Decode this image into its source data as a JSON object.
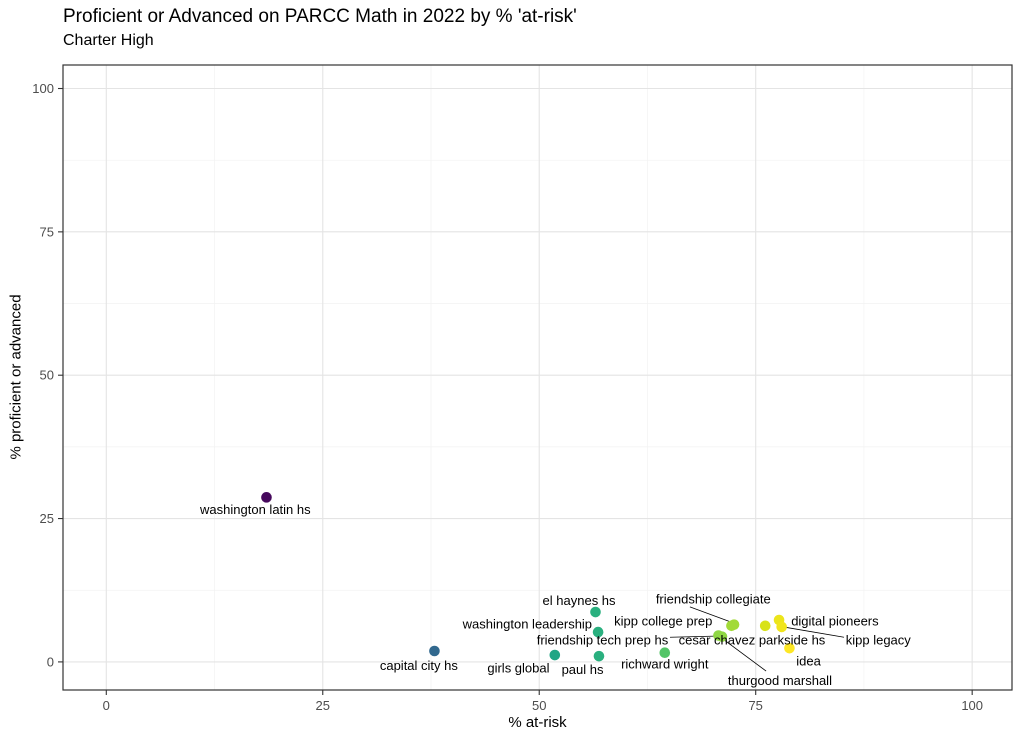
{
  "header": {
    "title": "Proficient or Advanced on PARCC Math in 2022 by % 'at-risk'",
    "subtitle": "Charter High"
  },
  "chart_data": {
    "type": "scatter",
    "title": "Proficient or Advanced on PARCC Math in 2022 by % 'at-risk'",
    "subtitle": "Charter High",
    "xlabel": "% at-risk",
    "ylabel": "% proficient or advanced",
    "x_ticks": [
      0,
      25,
      50,
      75,
      100
    ],
    "y_ticks": [
      0,
      25,
      50,
      75,
      100
    ],
    "xlim": [
      -5,
      104.6
    ],
    "ylim": [
      -4.9,
      104.1
    ],
    "grid": true,
    "legend": "none",
    "color_encoding": "viridis gradient mapped to % at-risk (x value)",
    "points": [
      {
        "name": "washington latin hs",
        "x": 18.5,
        "y": 28.7,
        "color": "#46085c",
        "label": {
          "x": 23.6,
          "y": 26.6,
          "anchor": "end"
        }
      },
      {
        "name": "capital city hs",
        "x": 37.9,
        "y": 1.9,
        "color": "#31688e",
        "label": {
          "x": 36.1,
          "y": -0.6,
          "anchor": "middle"
        }
      },
      {
        "name": "girls global",
        "x": 51.8,
        "y": 1.2,
        "color": "#21a685",
        "label": {
          "x": 47.6,
          "y": -1.1,
          "anchor": "middle"
        }
      },
      {
        "name": "el haynes hs",
        "x": 56.5,
        "y": 8.7,
        "color": "#2ab07f",
        "label": {
          "x": 54.6,
          "y": 10.7,
          "anchor": "middle"
        }
      },
      {
        "name": "washington leadership",
        "x": 56.8,
        "y": 5.2,
        "color": "#2ab07f",
        "label": {
          "x": 56.1,
          "y": 6.6,
          "anchor": "end"
        }
      },
      {
        "name": "paul hs",
        "x": 56.9,
        "y": 1.0,
        "color": "#2ab07f",
        "label": {
          "x": 55.0,
          "y": -1.3,
          "anchor": "middle"
        }
      },
      {
        "name": "richward wright",
        "x": 64.5,
        "y": 1.6,
        "color": "#54c568",
        "label": {
          "x": 64.5,
          "y": -0.4,
          "anchor": "middle"
        }
      },
      {
        "name": "friendship tech prep hs",
        "x": 70.7,
        "y": 4.6,
        "color": "#8fd744",
        "label": {
          "x": 64.9,
          "y": 3.8,
          "anchor": "end"
        }
      },
      {
        "name": "thurgood marshall",
        "x": 71.1,
        "y": 4.4,
        "color": "#8fd744",
        "label": {
          "x": 77.8,
          "y": -3.2,
          "anchor": "middle"
        }
      },
      {
        "name": "kipp college prep",
        "x": 72.2,
        "y": 6.3,
        "color": "#a2da37",
        "label": {
          "x": 70.0,
          "y": 7.15,
          "anchor": "end"
        }
      },
      {
        "name": "friendship collegiate",
        "x": 72.5,
        "y": 6.5,
        "color": "#a2da37",
        "label": {
          "x": 70.1,
          "y": 11.0,
          "anchor": "middle"
        }
      },
      {
        "name": "cesar chavez parkside hs",
        "x": 76.1,
        "y": 6.3,
        "color": "#d8e219",
        "label": {
          "x": 66.1,
          "y": 3.8,
          "anchor": "start"
        }
      },
      {
        "name": "digital pioneers",
        "x": 77.7,
        "y": 7.3,
        "color": "#ece51b",
        "label": {
          "x": 79.1,
          "y": 7.15,
          "anchor": "start"
        }
      },
      {
        "name": "kipp legacy",
        "x": 78.0,
        "y": 6.1,
        "color": "#f1e51d",
        "label": {
          "x": 85.4,
          "y": 3.8,
          "anchor": "start"
        }
      },
      {
        "name": "idea",
        "x": 78.9,
        "y": 2.4,
        "color": "#fde725",
        "label": {
          "x": 81.1,
          "y": 0.15,
          "anchor": "middle"
        }
      }
    ],
    "leader_lines": [
      {
        "label": "friendship collegiate",
        "x1": 67.4,
        "y1": 9.6,
        "x2": 71.9,
        "y2": 7.1
      },
      {
        "label": "friendship tech prep hs",
        "x1": 65.1,
        "y1": 4.3,
        "x2": 70.3,
        "y2": 4.5
      },
      {
        "label": "thurgood marshall",
        "x1": 76.2,
        "y1": -1.6,
        "x2": 71.3,
        "y2": 3.9
      },
      {
        "label": "kipp legacy",
        "x1": 85.2,
        "y1": 4.3,
        "x2": 78.2,
        "y2": 6.1
      }
    ]
  },
  "style": {
    "grid_major": "#e4e4e4",
    "grid_minor": "#f2f2f2",
    "panel_border": "#333333",
    "tick_color": "#333333",
    "tick_label_color": "#4d4d4d",
    "point_label_color": "#000000",
    "leader_color": "#000000"
  }
}
